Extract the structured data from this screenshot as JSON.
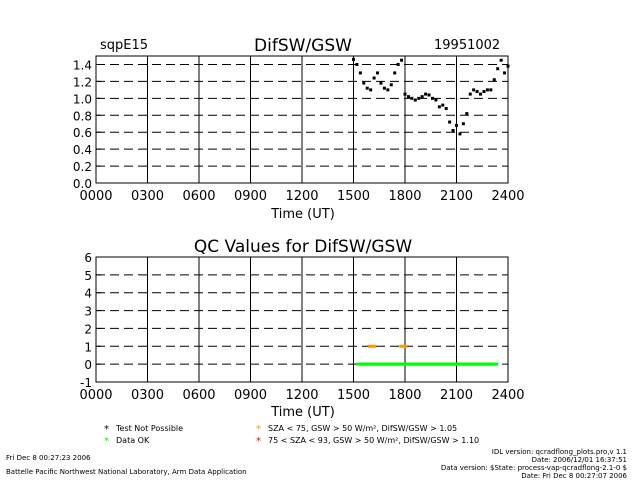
{
  "colors": {
    "background": "#ffffff",
    "axes": "#000000",
    "difsw_points": "#000000",
    "test_not_possible": "#000000",
    "data_ok": "#00ff00",
    "qc_orange": "#ff9900",
    "qc_red": "#ff0000"
  },
  "header": {
    "site": "sqpE15",
    "title": "DifSW/GSW",
    "date": "19951002"
  },
  "chart_data": [
    {
      "type": "scatter",
      "title": "DifSW/GSW",
      "xlabel": "Time (UT)",
      "ylabel": "",
      "xlim": [
        0,
        24
      ],
      "ylim": [
        0,
        1.5
      ],
      "xticks": [
        0,
        3,
        6,
        9,
        12,
        15,
        18,
        21,
        24
      ],
      "xtick_labels": [
        "0000",
        "0300",
        "0600",
        "0900",
        "1200",
        "1500",
        "1800",
        "2100",
        "2400"
      ],
      "yticks": [
        0,
        0.2,
        0.4,
        0.6,
        0.8,
        1.0,
        1.2,
        1.4
      ],
      "ytick_labels": [
        "0.0",
        "0.2",
        "0.4",
        "0.6",
        "0.8",
        "1.0",
        "1.2",
        "1.4"
      ],
      "grid": "dashed",
      "series": [
        {
          "x": [
            15.0,
            15.2,
            15.4,
            15.6,
            15.8,
            16.0,
            16.2,
            16.4,
            16.6,
            16.8,
            17.0,
            17.2,
            17.4,
            17.6,
            17.8,
            18.0,
            18.2,
            18.4,
            18.6,
            18.8,
            19.0,
            19.2,
            19.4,
            19.6,
            19.8,
            20.0,
            20.2,
            20.4,
            20.6,
            20.8,
            21.0,
            21.2,
            21.4,
            21.6,
            21.8,
            22.0,
            22.2,
            22.4,
            22.6,
            22.8,
            23.0,
            23.2,
            23.4,
            23.6,
            23.8,
            24.0
          ],
          "y": [
            1.46,
            1.4,
            1.3,
            1.18,
            1.12,
            1.1,
            1.24,
            1.3,
            1.18,
            1.12,
            1.1,
            1.16,
            1.3,
            1.4,
            1.45,
            1.05,
            1.02,
            1.0,
            0.98,
            1.0,
            1.02,
            1.05,
            1.04,
            1.0,
            0.98,
            0.9,
            0.92,
            0.88,
            0.72,
            0.62,
            0.68,
            0.58,
            0.7,
            0.82,
            1.05,
            1.1,
            1.08,
            1.05,
            1.08,
            1.1,
            1.1,
            1.22,
            1.35,
            1.45,
            1.3,
            1.38
          ]
        }
      ]
    },
    {
      "type": "scatter",
      "title": "QC Values for DifSW/GSW",
      "xlabel": "Time (UT)",
      "ylabel": "",
      "xlim": [
        0,
        24
      ],
      "ylim": [
        -1,
        6
      ],
      "xticks": [
        0,
        3,
        6,
        9,
        12,
        15,
        18,
        21,
        24
      ],
      "xtick_labels": [
        "0000",
        "0300",
        "0600",
        "0900",
        "1200",
        "1500",
        "1800",
        "2100",
        "2400"
      ],
      "yticks": [
        -1,
        0,
        1,
        2,
        3,
        4,
        5,
        6
      ],
      "ytick_labels": [
        "-1",
        "0",
        "1",
        "2",
        "3",
        "4",
        "5",
        "6"
      ],
      "grid": "dashed",
      "series": [
        {
          "name": "Test Not Possible",
          "x": [],
          "y": []
        },
        {
          "name": "Data OK",
          "x": [
            15.4,
            15.6,
            15.8,
            16.0,
            16.2,
            16.4,
            16.6,
            16.8,
            17.0,
            17.2,
            17.4,
            17.6,
            17.8,
            18.0,
            18.2,
            18.4,
            18.6,
            18.8,
            19.0,
            19.2,
            19.4,
            19.6,
            19.8,
            20.0,
            20.2,
            20.4,
            20.6,
            20.8,
            21.0,
            21.2,
            21.4,
            21.6,
            21.8,
            22.0,
            22.2,
            22.4,
            22.6,
            22.8,
            23.0,
            23.2
          ],
          "y": [
            0,
            0,
            0,
            0,
            0,
            0,
            0,
            0,
            0,
            0,
            0,
            0,
            0,
            0,
            0,
            0,
            0,
            0,
            0,
            0,
            0,
            0,
            0,
            0,
            0,
            0,
            0,
            0,
            0,
            0,
            0,
            0,
            0,
            0,
            0,
            0,
            0,
            0,
            0,
            0
          ]
        },
        {
          "name": "SZA < 75, GSW > 50 W/m², DifSW/GSW > 1.05",
          "x": [
            16.1,
            17.9
          ],
          "y": [
            1,
            1
          ]
        },
        {
          "name": "75 < SZA < 93, GSW > 50 W/m², DifSW/GSW > 1.10",
          "x": [],
          "y": []
        }
      ]
    }
  ],
  "legend": {
    "test_not_possible": "Test Not Possible",
    "data_ok": "Data OK",
    "sza_75": "SZA < 75, GSW > 50 W/m², DifSW/GSW > 1.05",
    "sza_93": "75 < SZA < 93, GSW > 50 W/m², DifSW/GSW > 1.10"
  },
  "footer": {
    "run_date": "Fri Dec  8 00:27:23 2006",
    "lab": "Battelle Pacific Northwest National Laboratory, Arm Data Application",
    "idl_version": "IDL version: qcradflong_plots.pro,v 1.1",
    "version_date": "Date: 2006/12/01 16:37:51",
    "data_version": "Data version: $State: process-vap-qcradflong-2.1-0 $",
    "data_date": "Date: Fri Dec  8 00:27:07 2006"
  }
}
